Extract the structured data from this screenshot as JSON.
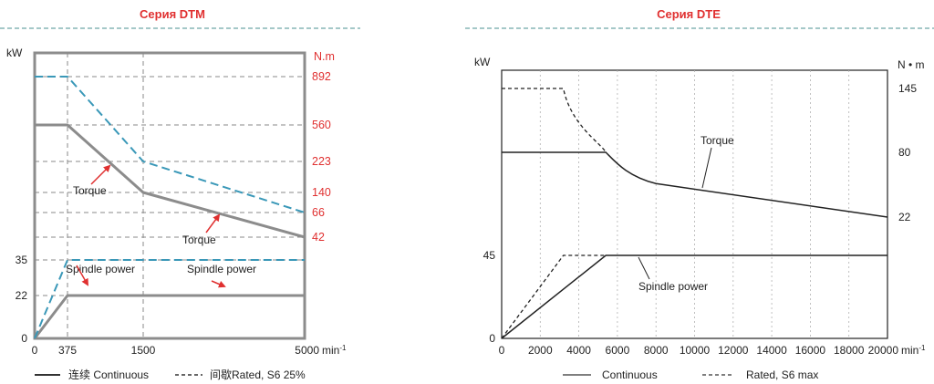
{
  "colors": {
    "title_red": "#e03030",
    "separator": "#4a9090",
    "grid_gray": "#8a8a8a",
    "frame_gray": "#8c8c8c",
    "continuous_gray": "#8c8c8c",
    "rated_blue": "#3a98b8",
    "arrow_red": "#e03030",
    "dte_line": "#222222"
  },
  "chart_data": [
    {
      "id": "dtm",
      "title": "Серия DTM",
      "type": "line",
      "xlabel": "min-1",
      "x_ticks": [
        {
          "label": "0",
          "value": 0
        },
        {
          "label": "375",
          "value": 375
        },
        {
          "label": "1500",
          "value": 1500
        },
        {
          "label": "5000",
          "value": 5000
        }
      ],
      "x_tick_labels": [
        "0",
        "375",
        "1500",
        "5000"
      ],
      "x_unit": "min",
      "x_unit_sup": "-1",
      "left_unit": "kW",
      "right_unit": "N.m",
      "left_ticks": [
        {
          "label": "0",
          "level": 0
        },
        {
          "label": "22",
          "level": 22
        },
        {
          "label": "35",
          "level": 35
        }
      ],
      "right_ticks": [
        {
          "label": "892",
          "level": 892
        },
        {
          "label": "560",
          "level": 560
        },
        {
          "label": "223",
          "level": 223
        },
        {
          "label": "140",
          "level": 140
        },
        {
          "label": "66",
          "level": 66
        },
        {
          "label": "42",
          "level": 42
        }
      ],
      "series": [
        {
          "name": "Torque continuous",
          "style": "continuous",
          "x": [
            0,
            375,
            1500,
            5000
          ],
          "y": [
            560,
            560,
            140,
            42
          ]
        },
        {
          "name": "Torque rated S6 25%",
          "style": "rated",
          "x": [
            0,
            375,
            1500,
            5000
          ],
          "y": [
            892,
            892,
            223,
            66
          ]
        },
        {
          "name": "Spindle power continuous",
          "style": "continuous",
          "x": [
            0,
            375,
            5000
          ],
          "y": [
            0,
            22,
            22
          ]
        },
        {
          "name": "Spindle power rated S6 25%",
          "style": "rated",
          "x": [
            0,
            375,
            5000
          ],
          "y": [
            0,
            35,
            35
          ]
        }
      ],
      "annotations": [
        "Torque",
        "Torque",
        "Spindle power",
        "Spindle power"
      ],
      "legend": [
        "连续 Continuous",
        "间歇Rated, S6 25%"
      ]
    },
    {
      "id": "dte",
      "title": "Серия DTE",
      "type": "line",
      "xlabel": "min-1",
      "x_ticks": [
        0,
        2000,
        4000,
        6000,
        8000,
        10000,
        12000,
        14000,
        16000,
        18000,
        20000
      ],
      "x_tick_labels": [
        "0",
        "2000",
        "4000",
        "6000",
        "8000",
        "10000",
        "12000",
        "14000",
        "16000",
        "18000",
        "20000"
      ],
      "x_unit": "min",
      "x_unit_sup": "-1",
      "left_unit": "kW",
      "right_unit": "N • m",
      "left_ticks": [
        {
          "label": "0",
          "level": 0
        },
        {
          "label": "45",
          "level": 45
        }
      ],
      "right_ticks": [
        {
          "label": "145",
          "level": 145
        },
        {
          "label": "80",
          "level": 80
        },
        {
          "label": "22",
          "level": 22
        }
      ],
      "series": [
        {
          "name": "Torque continuous",
          "style": "continuous",
          "x": [
            0,
            5400,
            6500,
            8000,
            12000,
            16000,
            20000
          ],
          "y": [
            80,
            80,
            62,
            52,
            43,
            33,
            22
          ]
        },
        {
          "name": "Torque rated S6 max",
          "style": "rated",
          "x": [
            0,
            3200,
            4200,
            5400
          ],
          "y": [
            145,
            145,
            95,
            80
          ]
        },
        {
          "name": "Spindle power continuous",
          "style": "continuous",
          "x": [
            0,
            5400,
            20000
          ],
          "y": [
            0,
            45,
            45
          ]
        },
        {
          "name": "Spindle power rated S6 max",
          "style": "rated",
          "x": [
            0,
            3200,
            5400
          ],
          "y": [
            0,
            45,
            45
          ]
        }
      ],
      "annotations": [
        "Torque",
        "Spindle power"
      ],
      "legend": [
        "Continuous",
        "Rated, S6 max"
      ]
    }
  ]
}
